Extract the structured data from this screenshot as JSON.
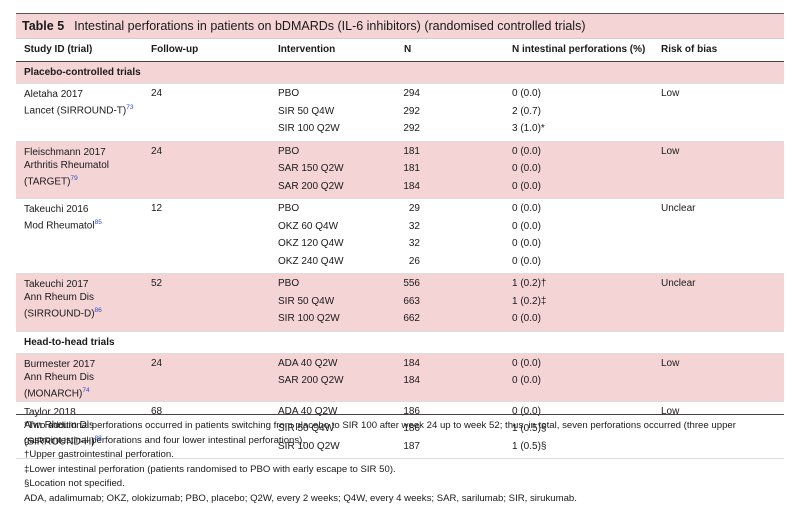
{
  "title": {
    "label": "Table 5",
    "text": "Intestinal perforations in patients on bDMARDs (IL-6 inhibitors) (randomised controlled trials)"
  },
  "headers": {
    "study": "Study ID (trial)",
    "followup": "Follow-up",
    "intervention": "Intervention",
    "n": "N",
    "nip": "N intestinal perforations (%)",
    "rob": "Risk of bias"
  },
  "sections": {
    "placebo": "Placebo-controlled trials",
    "h2h": "Head-to-head trials"
  },
  "groups": [
    {
      "study": "Aletaha 2017",
      "study2": "Lancet (SIRROUND-T)",
      "ref": "73",
      "followup": "24",
      "rob": "Low",
      "rows": [
        {
          "iv": "PBO",
          "n": "294",
          "nip": "0 (0.0)"
        },
        {
          "iv": "SIR 50 Q4W",
          "n": "292",
          "nip": "2 (0.7)"
        },
        {
          "iv": "SIR 100 Q2W",
          "n": "292",
          "nip": "3 (1.0)*"
        }
      ]
    },
    {
      "study": "Fleischmann 2017",
      "study2": "Arthritis Rheumatol",
      "study3": "(TARGET)",
      "ref": "79",
      "followup": "24",
      "rob": "Low",
      "rows": [
        {
          "iv": "PBO",
          "n": "181",
          "nip": "0 (0.0)"
        },
        {
          "iv": "SAR 150 Q2W",
          "n": "181",
          "nip": "0 (0.0)"
        },
        {
          "iv": "SAR 200 Q2W",
          "n": "184",
          "nip": "0 (0.0)"
        }
      ]
    },
    {
      "study": "Takeuchi 2016",
      "study2": "Mod Rheumatol",
      "ref": "85",
      "followup": "12",
      "rob": "Unclear",
      "rows": [
        {
          "iv": "PBO",
          "n": "29",
          "nip": "0 (0.0)"
        },
        {
          "iv": "OKZ 60 Q4W",
          "n": "32",
          "nip": "0 (0.0)"
        },
        {
          "iv": "OKZ 120 Q4W",
          "n": "32",
          "nip": "0 (0.0)"
        },
        {
          "iv": "OKZ 240 Q4W",
          "n": "26",
          "nip": "0 (0.0)"
        }
      ]
    },
    {
      "study": "Takeuchi 2017",
      "study2": "Ann Rheum Dis",
      "study3": "(SIRROUND-D)",
      "ref": "86",
      "followup": "52",
      "rob": "Unclear",
      "rows": [
        {
          "iv": "PBO",
          "n": "556",
          "nip": "1 (0.2)†"
        },
        {
          "iv": "SIR 50 Q4W",
          "n": "663",
          "nip": "1 (0.2)‡"
        },
        {
          "iv": "SIR 100 Q2W",
          "n": "662",
          "nip": "0 (0.0)"
        }
      ]
    },
    {
      "study": "Burmester 2017",
      "study2": "Ann Rheum Dis",
      "study3": "(MONARCH)",
      "ref": "74",
      "followup": "24",
      "rob": "Low",
      "rows": [
        {
          "iv": "ADA 40 Q2W",
          "n": "184",
          "nip": "0 (0.0)"
        },
        {
          "iv": "SAR 200 Q2W",
          "n": "184",
          "nip": "0 (0.0)"
        }
      ]
    },
    {
      "study": "Taylor 2018",
      "study2": "Ann Rheum Dis",
      "study3": "(SIRROUND-H)",
      "ref": "88",
      "followup": "68",
      "rob": "Low",
      "rows": [
        {
          "iv": "ADA 40 Q2W",
          "n": "186",
          "nip": "0 (0.0)"
        },
        {
          "iv": "SIR 50 Q4W",
          "n": "186",
          "nip": "1 (0.5)§"
        },
        {
          "iv": "SIR 100 Q2W",
          "n": "187",
          "nip": "1 (0.5)§"
        }
      ]
    }
  ],
  "notes": [
    "*Two additional perforations occurred in patients switching from placebo to SIR 100 after week 24 up to week 52; thus, in total, seven perforations occurred (three upper gastrointestinal perforations and four lower intestinal perforations).",
    "†Upper gastrointestinal perforation.",
    "‡Lower intestinal perforation (patients randomised to PBO with early escape to SIR 50).",
    "§Location not specified.",
    "ADA, adalimumab; OKZ, olokizumab; PBO, placebo; Q2W, every 2 weeks; Q4W, every 4 weeks; SAR, sarilumab; SIR, sirukumab."
  ]
}
